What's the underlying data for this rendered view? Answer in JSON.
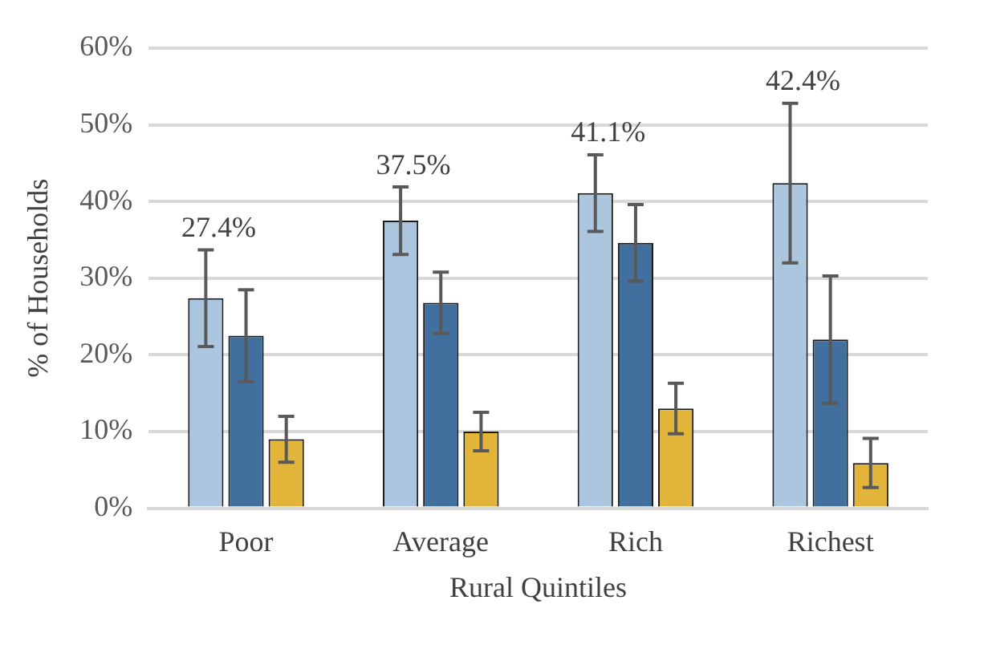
{
  "chart_data": {
    "type": "bar",
    "xlabel": "Rural Quintiles",
    "ylabel": "% of Households",
    "categories": [
      "Poor",
      "Average",
      "Rich",
      "Richest"
    ],
    "series": [
      {
        "color": "#adc6e0",
        "values": [
          27.4,
          37.5,
          41.1,
          42.4
        ],
        "errors": [
          6.3,
          4.4,
          5,
          10.4
        ],
        "value_labels": [
          "27.4%",
          "37.5%",
          "41.1%",
          "42.4%"
        ]
      },
      {
        "color": "#41709f",
        "values": [
          22.5,
          26.8,
          34.6,
          22
        ],
        "errors": [
          6,
          4,
          5,
          8.3
        ]
      },
      {
        "color": "#e2b53a",
        "values": [
          9,
          10,
          13,
          5.9
        ],
        "errors": [
          3,
          2.5,
          3.3,
          3.2
        ]
      }
    ],
    "ylim": [
      0,
      60
    ],
    "yticks": [
      {
        "value": 0,
        "label": "0%"
      },
      {
        "value": 10,
        "label": "10%"
      },
      {
        "value": 20,
        "label": "20%"
      },
      {
        "value": 30,
        "label": "30%"
      },
      {
        "value": 40,
        "label": "40%"
      },
      {
        "value": 50,
        "label": "50%"
      },
      {
        "value": 60,
        "label": "60%"
      }
    ],
    "grid": "y",
    "legend": false
  }
}
